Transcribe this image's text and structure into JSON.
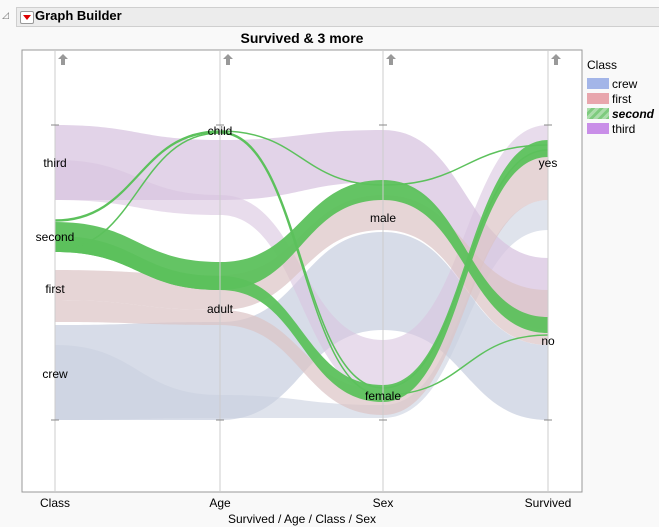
{
  "header": {
    "title": "Graph Builder"
  },
  "chart_data": {
    "type": "parallel",
    "title": "Survived & 3 more",
    "xlabel": "Survived / Age / Class / Sex",
    "axes": [
      {
        "name": "Class",
        "categories": [
          "third",
          "second",
          "first",
          "crew"
        ]
      },
      {
        "name": "Age",
        "categories": [
          "child",
          "adult"
        ]
      },
      {
        "name": "Sex",
        "categories": [
          "male",
          "female"
        ]
      },
      {
        "name": "Survived",
        "categories": [
          "yes",
          "no"
        ]
      }
    ],
    "color_by": "Class",
    "highlighted": "second",
    "legend": {
      "title": "Class",
      "placement": "right",
      "items": [
        {
          "label": "crew",
          "color": "#a3b5e8"
        },
        {
          "label": "first",
          "color": "#e8a6ad"
        },
        {
          "label": "second",
          "color": "#7ecb7e"
        },
        {
          "label": "third",
          "color": "#c98ee8"
        }
      ]
    }
  }
}
